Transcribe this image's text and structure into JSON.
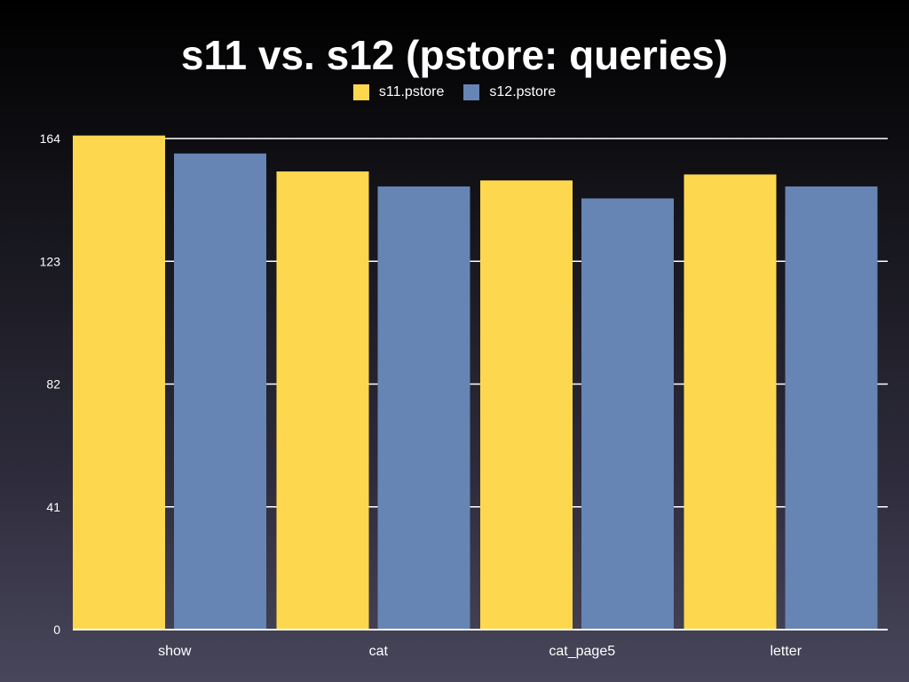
{
  "chart_data": {
    "type": "bar",
    "title": "s11 vs. s12 (pstore: queries)",
    "categories": [
      "show",
      "cat",
      "cat_page5",
      "letter"
    ],
    "series": [
      {
        "name": "s11.pstore",
        "values": [
          165,
          153,
          150,
          152
        ],
        "color": "#fdd84e"
      },
      {
        "name": "s12.pstore",
        "values": [
          159,
          148,
          144,
          148
        ],
        "color": "#6685b4"
      }
    ],
    "yticks": [
      "0",
      "41",
      "82",
      "123",
      "164"
    ],
    "ylim": [
      0,
      164
    ],
    "xlabel": "",
    "ylabel": "",
    "grid": true,
    "legend_position": "top-center"
  }
}
